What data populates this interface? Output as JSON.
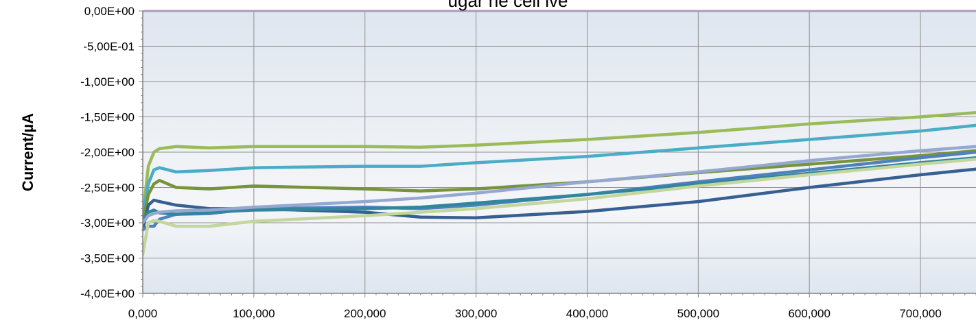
{
  "chart_data": {
    "type": "line",
    "title": "",
    "title_visible_fragment": "ugar ne cell ive",
    "xlabel": "",
    "ylabel": "Current/µA",
    "xlim": [
      0,
      750000
    ],
    "ylim": [
      -4.0,
      0.0
    ],
    "x_ticks": [
      0,
      100000,
      200000,
      300000,
      400000,
      500000,
      600000,
      700000
    ],
    "x_tick_labels": [
      "0,000",
      "100,000",
      "200,000",
      "300,000",
      "400,000",
      "500,000",
      "600,000",
      "700,000"
    ],
    "y_ticks": [
      0.0,
      -0.5,
      -1.0,
      -1.5,
      -2.0,
      -2.5,
      -3.0,
      -3.5,
      -4.0
    ],
    "y_tick_labels": [
      "0,00E+00",
      "-5,00E-01",
      "-1,00E+00",
      "-1,50E+00",
      "-2,00E+00",
      "-2,50E+00",
      "-3,00E+00",
      "-3,50E+00",
      "-4,00E+00"
    ],
    "grid": true,
    "legend": "none",
    "series": [
      {
        "color": "#9bbb59",
        "x": [
          0,
          5000,
          10000,
          15000,
          30000,
          60000,
          100000,
          200000,
          250000,
          300000,
          400000,
          500000,
          600000,
          700000,
          750000
        ],
        "y": [
          -2.9,
          -2.2,
          -2.0,
          -1.95,
          -1.92,
          -1.94,
          -1.92,
          -1.92,
          -1.93,
          -1.9,
          -1.82,
          -1.72,
          -1.6,
          -1.5,
          -1.44
        ]
      },
      {
        "color": "#4bacc6",
        "x": [
          0,
          5000,
          10000,
          15000,
          30000,
          60000,
          100000,
          200000,
          250000,
          300000,
          400000,
          500000,
          600000,
          700000,
          750000
        ],
        "y": [
          -2.9,
          -2.45,
          -2.25,
          -2.22,
          -2.28,
          -2.26,
          -2.22,
          -2.2,
          -2.2,
          -2.15,
          -2.06,
          -1.94,
          -1.82,
          -1.7,
          -1.62
        ]
      },
      {
        "color": "#77933c",
        "x": [
          0,
          5000,
          10000,
          15000,
          30000,
          60000,
          100000,
          200000,
          250000,
          300000,
          400000,
          500000,
          600000,
          700000,
          750000
        ],
        "y": [
          -3.0,
          -2.6,
          -2.45,
          -2.4,
          -2.5,
          -2.52,
          -2.48,
          -2.52,
          -2.55,
          -2.52,
          -2.42,
          -2.29,
          -2.17,
          -2.05,
          -1.98
        ]
      },
      {
        "color": "#376092",
        "x": [
          0,
          5000,
          10000,
          15000,
          30000,
          60000,
          100000,
          200000,
          250000,
          300000,
          400000,
          500000,
          600000,
          700000,
          750000
        ],
        "y": [
          -3.1,
          -2.75,
          -2.68,
          -2.7,
          -2.75,
          -2.8,
          -2.8,
          -2.85,
          -2.92,
          -2.93,
          -2.84,
          -2.7,
          -2.5,
          -2.32,
          -2.24
        ]
      },
      {
        "color": "#4f81bd",
        "x": [
          0,
          5000,
          10000,
          15000,
          30000,
          60000,
          100000,
          200000,
          250000,
          300000,
          400000,
          500000,
          600000,
          700000,
          750000
        ],
        "y": [
          -3.1,
          -3.05,
          -3.05,
          -2.95,
          -2.88,
          -2.87,
          -2.8,
          -2.78,
          -2.8,
          -2.75,
          -2.6,
          -2.42,
          -2.25,
          -2.08,
          -2.0
        ]
      },
      {
        "color": "#31859c",
        "x": [
          0,
          5000,
          10000,
          15000,
          30000,
          60000,
          100000,
          200000,
          250000,
          300000,
          400000,
          500000,
          600000,
          700000,
          750000
        ],
        "y": [
          -2.95,
          -2.85,
          -2.82,
          -2.86,
          -2.88,
          -2.85,
          -2.82,
          -2.8,
          -2.78,
          -2.72,
          -2.6,
          -2.45,
          -2.3,
          -2.15,
          -2.08
        ]
      },
      {
        "color": "#95a8d2",
        "x": [
          0,
          5000,
          10000,
          15000,
          30000,
          60000,
          100000,
          200000,
          250000,
          300000,
          400000,
          500000,
          600000,
          700000,
          750000
        ],
        "y": [
          -3.0,
          -2.9,
          -2.87,
          -2.85,
          -2.83,
          -2.82,
          -2.78,
          -2.7,
          -2.65,
          -2.58,
          -2.42,
          -2.28,
          -2.12,
          -1.98,
          -1.92
        ]
      },
      {
        "color": "#c3d69b",
        "x": [
          0,
          5000,
          10000,
          15000,
          30000,
          60000,
          100000,
          200000,
          250000,
          300000,
          400000,
          500000,
          600000,
          700000,
          750000
        ],
        "y": [
          -3.45,
          -3.0,
          -2.97,
          -2.98,
          -3.05,
          -3.05,
          -2.98,
          -2.9,
          -2.85,
          -2.8,
          -2.66,
          -2.48,
          -2.32,
          -2.17,
          -2.1
        ]
      }
    ]
  },
  "colors": {
    "plot_border": "#a99bbf",
    "grid": "#909090",
    "plot_bg_top": "#dfe6f0",
    "plot_bg_bottom": "#f5f6f8"
  }
}
